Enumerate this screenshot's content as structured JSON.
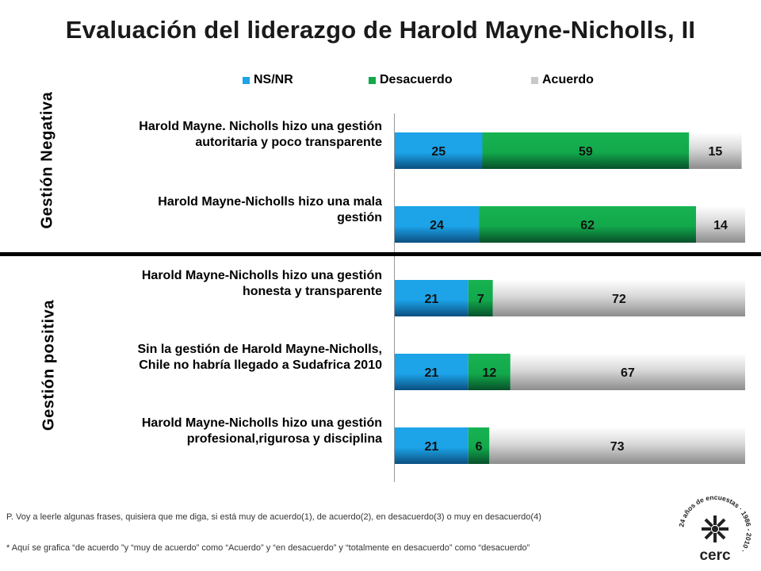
{
  "title": "Evaluación del liderazgo de Harold Mayne-Nicholls, II",
  "side_labels": {
    "negative": "Gestión Negativa",
    "positive": "Gestión positiva"
  },
  "legend": [
    {
      "label": "NS/NR",
      "color": "#1ca3e8"
    },
    {
      "label": "Desacuerdo",
      "color": "#12a84b"
    },
    {
      "label": "Acuerdo",
      "color": "#c9c9c9"
    }
  ],
  "rows": [
    {
      "line1": "Harold Mayne. Nicholls hizo una gestión",
      "line2": "autoritaria y poco transparente"
    },
    {
      "line1": "Harold Mayne-Nicholls hizo una mala",
      "line2": "gestión"
    },
    {
      "line1": "Harold Mayne-Nicholls hizo una gestión",
      "line2": "honesta y transparente"
    },
    {
      "line1": "Sin la gestión de Harold Mayne-Nicholls,",
      "line2": "Chile no habría llegado a Sudafrica 2010"
    },
    {
      "line1": "Harold Mayne-Nicholls hizo una gestión",
      "line2": "profesional,rigurosa y disciplina"
    }
  ],
  "chart_data": {
    "type": "bar",
    "orientation": "horizontal",
    "stacked": true,
    "categories": [
      "Harold Mayne. Nicholls hizo una gestión autoritaria y poco transparente",
      "Harold Mayne-Nicholls hizo una mala gestión",
      "Harold Mayne-Nicholls hizo una gestión honesta y transparente",
      "Sin la gestión de Harold Mayne-Nicholls, Chile no habría llegado a Sudafrica 2010",
      "Harold Mayne-Nicholls hizo una gestión profesional,rigurosa y disciplina"
    ],
    "series": [
      {
        "name": "NS/NR",
        "color": "#1ca3e8",
        "values": [
          25,
          24,
          21,
          21,
          21
        ]
      },
      {
        "name": "Desacuerdo",
        "color": "#12a84b",
        "values": [
          59,
          62,
          7,
          12,
          6
        ]
      },
      {
        "name": "Acuerdo",
        "color": "#c9c9c9",
        "values": [
          15,
          14,
          72,
          67,
          73
        ]
      }
    ],
    "xlim": [
      0,
      100
    ],
    "legend_position": "top",
    "grid": false
  },
  "notes": {
    "question": "P. Voy a leerle algunas frases, quisiera que me diga, si está muy de acuerdo(1), de acuerdo(2), en desacuerdo(3) o muy en desacuerdo(4)",
    "footnote": "* Aquí se grafica  “de acuerdo ”y “muy de acuerdo” como “Acuerdo” y “en desacuerdo” y “totalmente en desacuerdo” como “desacuerdo”"
  },
  "logo": {
    "name": "cerc",
    "ring_text": "24 años de encuestas · 1986 - 2010 ·"
  }
}
